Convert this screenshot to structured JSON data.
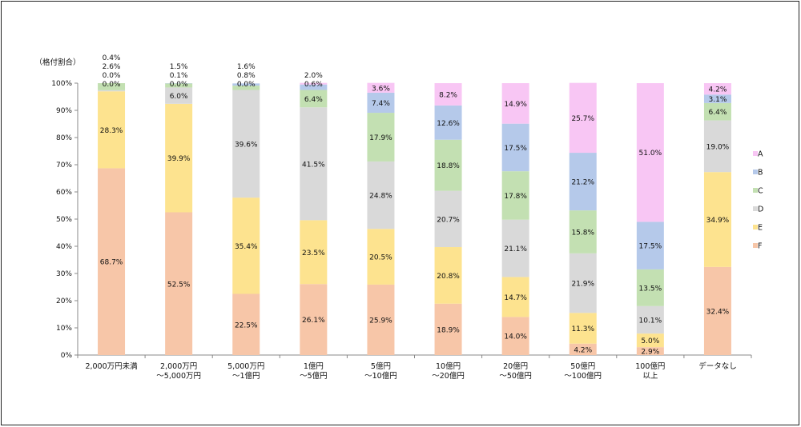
{
  "chart_data": {
    "type": "bar",
    "stacked": true,
    "percent": true,
    "ylabel": "（格付割合）",
    "ylim": [
      0,
      100
    ],
    "yticks": [
      "0%",
      "10%",
      "20%",
      "30%",
      "40%",
      "50%",
      "60%",
      "70%",
      "80%",
      "90%",
      "100%"
    ],
    "categories": [
      [
        "2,000万円未満"
      ],
      [
        "2,000万円",
        "～5,000万円"
      ],
      [
        "5,000万円",
        "～1億円"
      ],
      [
        "1億円",
        "～5億円"
      ],
      [
        "5億円",
        "～10億円"
      ],
      [
        "10億円",
        "～20億円"
      ],
      [
        "20億円",
        "～50億円"
      ],
      [
        "50億円",
        "～100億円"
      ],
      [
        "100億円",
        "以上"
      ],
      [
        "データなし"
      ]
    ],
    "series": [
      {
        "name": "F",
        "color": "#f7c6a8",
        "values": [
          68.7,
          52.5,
          22.5,
          26.1,
          25.9,
          18.9,
          14.0,
          4.2,
          2.9,
          32.4
        ],
        "labels": [
          "68.7%",
          "52.5%",
          "22.5%",
          "26.1%",
          "25.9%",
          "18.9%",
          "14.0%",
          "4.2%",
          "2.9%",
          "32.4%"
        ]
      },
      {
        "name": "E",
        "color": "#fde38f",
        "values": [
          28.3,
          39.9,
          35.4,
          23.5,
          20.5,
          20.8,
          14.7,
          11.3,
          5.0,
          34.9
        ],
        "labels": [
          "28.3%",
          "39.9%",
          "35.4%",
          "23.5%",
          "20.5%",
          "20.8%",
          "14.7%",
          "11.3%",
          "5.0%",
          "34.9%"
        ]
      },
      {
        "name": "D",
        "color": "#d9d9d9",
        "values": [
          0.4,
          6.0,
          39.6,
          41.5,
          24.8,
          20.7,
          21.1,
          21.9,
          10.1,
          19.0
        ],
        "labels": [
          "0.4%",
          "6.0%",
          "39.6%",
          "41.5%",
          "24.8%",
          "20.7%",
          "21.1%",
          "21.9%",
          "10.1%",
          "19.0%"
        ]
      },
      {
        "name": "C",
        "color": "#c3e0b2",
        "values": [
          2.6,
          1.5,
          1.6,
          6.4,
          17.9,
          18.8,
          17.8,
          15.8,
          13.5,
          6.4
        ],
        "labels": [
          "2.6%",
          "1.5%",
          "1.6%",
          "6.4%",
          "17.9%",
          "18.8%",
          "17.8%",
          "15.8%",
          "13.5%",
          "6.4%"
        ]
      },
      {
        "name": "B",
        "color": "#b5c9ea",
        "values": [
          0.0,
          0.1,
          0.8,
          2.0,
          7.4,
          12.6,
          17.5,
          21.2,
          17.5,
          3.1
        ],
        "labels": [
          "0.0%",
          "0.1%",
          "0.8%",
          "2.0%",
          "7.4%",
          "12.6%",
          "17.5%",
          "21.2%",
          "17.5%",
          "3.1%"
        ]
      },
      {
        "name": "A",
        "color": "#f8c6f4",
        "values": [
          0.0,
          0.0,
          0.0,
          0.6,
          3.6,
          8.2,
          14.9,
          25.7,
          51.0,
          4.2
        ],
        "labels": [
          "0.0%",
          "0.0%",
          "0.0%",
          "0.6%",
          "3.6%",
          "8.2%",
          "14.9%",
          "25.7%",
          "51.0%",
          "4.2%"
        ]
      }
    ],
    "legend": {
      "position": "right",
      "order": [
        "A",
        "B",
        "C",
        "D",
        "E",
        "F"
      ]
    }
  }
}
